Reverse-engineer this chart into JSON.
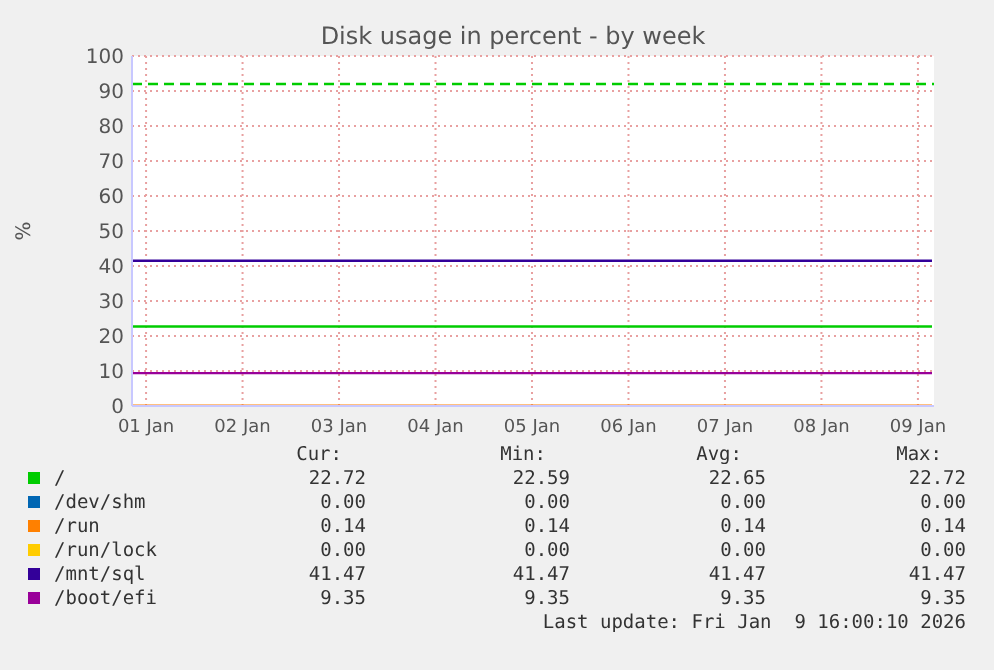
{
  "chart_data": {
    "type": "line",
    "title": "Disk usage in percent - by week",
    "ylabel": "%",
    "xlim": [
      "2025-12-31T20:30",
      "2026-01-09T04:00"
    ],
    "xticks": [
      {
        "value": "2026-01-01",
        "label": "01 Jan"
      },
      {
        "value": "2026-01-02",
        "label": "02 Jan"
      },
      {
        "value": "2026-01-03",
        "label": "03 Jan"
      },
      {
        "value": "2026-01-04",
        "label": "04 Jan"
      },
      {
        "value": "2026-01-05",
        "label": "05 Jan"
      },
      {
        "value": "2026-01-06",
        "label": "06 Jan"
      },
      {
        "value": "2026-01-07",
        "label": "07 Jan"
      },
      {
        "value": "2026-01-08",
        "label": "08 Jan"
      },
      {
        "value": "2026-01-09",
        "label": "09 Jan"
      }
    ],
    "ylim": [
      0,
      100
    ],
    "yticks": [
      0,
      10,
      20,
      30,
      40,
      50,
      60,
      70,
      80,
      90,
      100
    ],
    "grid": true,
    "legend": "bottom",
    "x": [
      "2025-12-31T20:30",
      "2026-01-09T03:30"
    ],
    "series": [
      {
        "name": "/",
        "color": "#00cc00",
        "values": [
          22.7,
          22.7
        ]
      },
      {
        "name": "/dev/shm",
        "color": "#0066b3",
        "values": [
          null,
          null
        ]
      },
      {
        "name": "/run",
        "color": "#ff8000",
        "values": [
          0.1,
          0.1
        ]
      },
      {
        "name": "/run/lock",
        "color": "#ffcc00",
        "values": [
          null,
          null
        ]
      },
      {
        "name": "/mnt/sql",
        "color": "#330099",
        "values": [
          41.5,
          41.5
        ]
      },
      {
        "name": "/boot/efi",
        "color": "#990099",
        "values": [
          9.4,
          9.4
        ]
      }
    ],
    "ref_lines": [
      {
        "axis": "y",
        "value": 92,
        "color": "#00cc00",
        "line_style": "dashed"
      }
    ],
    "annotations": [
      "Cur:",
      "Min:",
      "Avg:",
      "Max:",
      "22.72",
      "22.59",
      "22.65",
      "22.72",
      "0.00",
      "0.00",
      "0.00",
      "0.00",
      "0.14",
      "0.14",
      "0.14",
      "0.14",
      "0.00",
      "0.00",
      "0.00",
      "0.00",
      "41.47",
      "41.47",
      "41.47",
      "41.47",
      "9.35",
      "9.35",
      "9.35",
      "9.35",
      "Last update: Fri Jan  9 16:00:10 2026"
    ]
  }
}
